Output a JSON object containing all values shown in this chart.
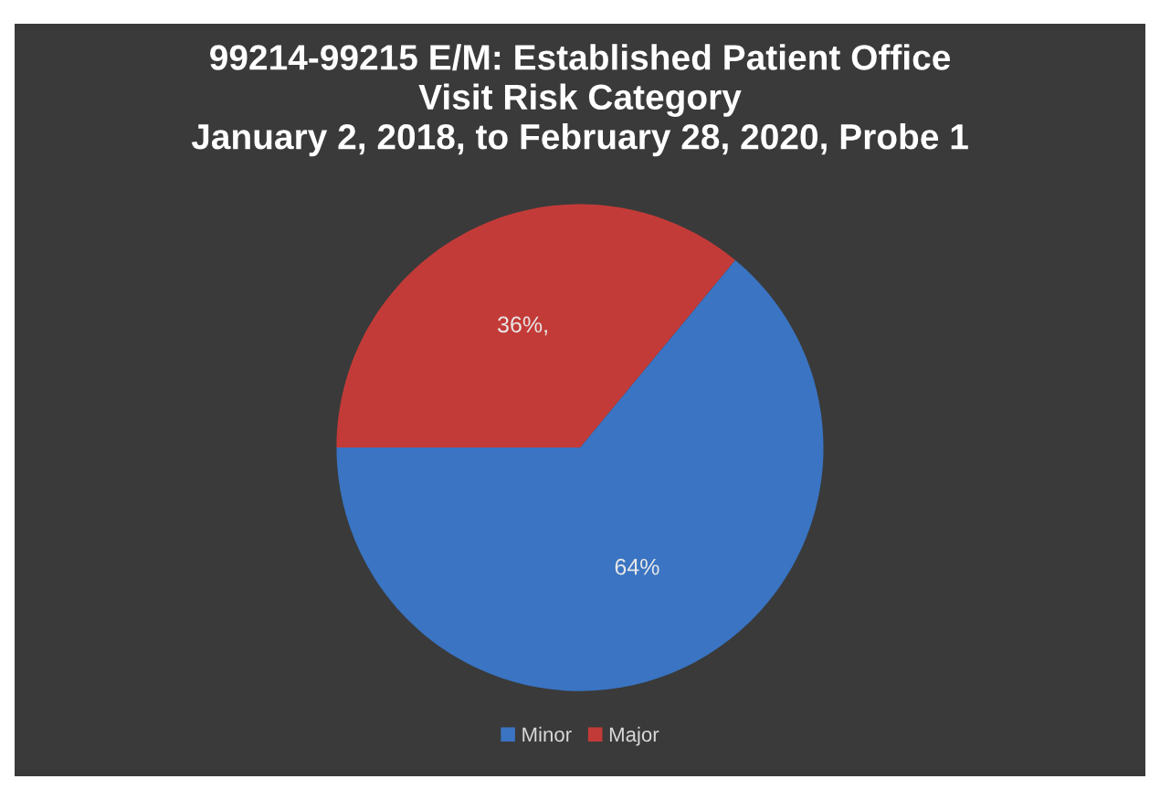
{
  "chart_data": {
    "type": "pie",
    "title": "99214-99215 E/M: Established Patient Office\nVisit Risk Category\nJanuary 2, 2018, to February 28, 2020, Probe 1",
    "categories": [
      "Minor",
      "Major"
    ],
    "values": [
      64,
      36
    ],
    "colors": [
      "#3a74c2",
      "#c33b38"
    ],
    "value_labels": [
      "64%",
      "36%,"
    ],
    "legend": "bottom"
  }
}
